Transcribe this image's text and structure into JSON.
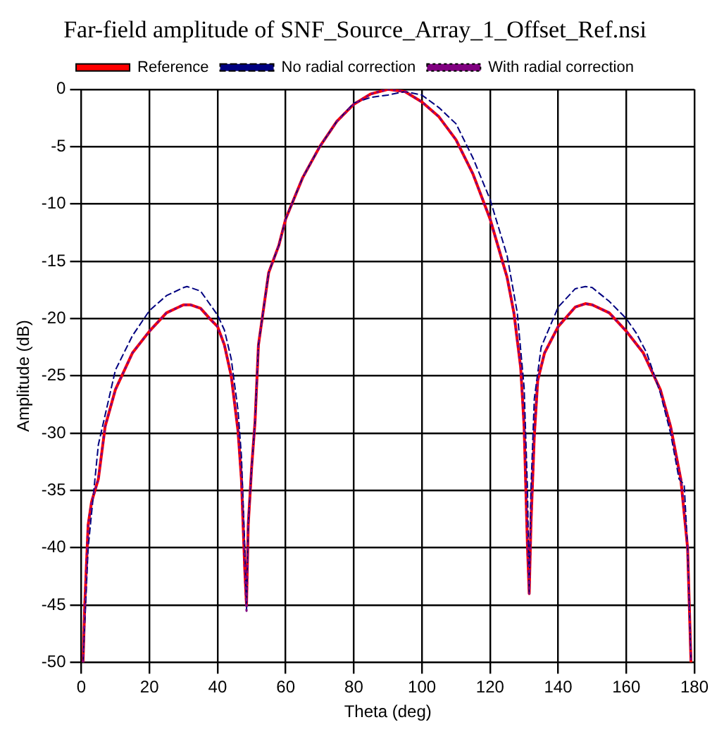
{
  "chart_data": {
    "type": "line",
    "title": "Far-field amplitude of SNF_Source_Array_1_Offset_Ref.nsi",
    "xlabel": "Theta (deg)",
    "ylabel": "Amplitude (dB)",
    "xlim": [
      0,
      180
    ],
    "xticks": [
      0,
      20,
      40,
      60,
      80,
      100,
      120,
      140,
      160,
      180
    ],
    "ylim": [
      -50,
      0
    ],
    "yticks": [
      -50,
      -45,
      -40,
      -35,
      -30,
      -25,
      -20,
      -15,
      -10,
      -5,
      0
    ],
    "grid": true,
    "legend": "top",
    "marker": "none",
    "series": [
      {
        "name": "Reference",
        "color": "#ff0000",
        "line_style": "solid",
        "x": [
          0.5,
          1,
          2,
          3,
          5,
          7,
          10,
          15,
          20,
          25,
          30,
          32,
          35,
          38,
          40,
          42,
          44,
          46,
          47,
          48,
          48.5,
          49,
          50,
          51,
          52,
          55,
          58,
          60,
          65,
          70,
          75,
          80,
          85,
          90,
          95,
          100,
          105,
          110,
          115,
          120,
          125,
          127,
          129,
          130,
          131,
          131.5,
          132,
          133,
          134,
          136,
          140,
          145,
          148,
          150,
          155,
          160,
          165,
          170,
          173,
          176,
          178,
          179
        ],
        "values": [
          -50,
          -45,
          -38,
          -36,
          -34,
          -29.4,
          -26.2,
          -23,
          -21.1,
          -19.5,
          -18.8,
          -18.8,
          -19.1,
          -20.1,
          -20.7,
          -22.3,
          -25,
          -29.8,
          -34,
          -42,
          -45,
          -38,
          -33,
          -29,
          -22.3,
          -16,
          -13.6,
          -11.3,
          -7.7,
          -5,
          -2.8,
          -1.3,
          -0.4,
          0,
          -0.2,
          -1.1,
          -2.4,
          -4.4,
          -7.4,
          -11.3,
          -16.4,
          -19.5,
          -24.3,
          -29.4,
          -40,
          -44,
          -38,
          -30.2,
          -25.4,
          -23,
          -20.7,
          -19,
          -18.7,
          -18.8,
          -19.5,
          -21.1,
          -23,
          -26.2,
          -29.4,
          -34,
          -40,
          -50
        ]
      },
      {
        "name": "No radial correction",
        "color": "#000080",
        "line_style": "dashed",
        "x": [
          0.5,
          2,
          5,
          10,
          15,
          20,
          25,
          30,
          31,
          35,
          40,
          42,
          44,
          46,
          47,
          48,
          48.5,
          49,
          50,
          51,
          52,
          55,
          58,
          60,
          65,
          70,
          75,
          80,
          85,
          90,
          95,
          100,
          105,
          110,
          115,
          120,
          125,
          128,
          130,
          131,
          131.5,
          132,
          133,
          135,
          140,
          145,
          148,
          150,
          155,
          160,
          163,
          166,
          170,
          173,
          175.5,
          177,
          178,
          179
        ],
        "values": [
          -50,
          -40,
          -31,
          -24.5,
          -21.5,
          -19.3,
          -18,
          -17.3,
          -17.2,
          -17.6,
          -19.7,
          -21,
          -23.5,
          -28,
          -32,
          -40,
          -45.5,
          -38,
          -33,
          -29,
          -22.3,
          -16,
          -13.6,
          -11.3,
          -7.7,
          -5,
          -2.8,
          -1.2,
          -0.7,
          -0.5,
          -0.2,
          -0.5,
          -1.6,
          -3,
          -6,
          -9.6,
          -14.5,
          -19.5,
          -26,
          -35,
          -44,
          -35,
          -27,
          -22.5,
          -19,
          -17.4,
          -17.2,
          -17.3,
          -18.5,
          -20,
          -21.3,
          -23,
          -26.5,
          -30,
          -34,
          -34.5,
          -40,
          -50
        ]
      },
      {
        "name": "With radial correction",
        "color": "#800080",
        "line_style": "dotted",
        "x": [
          0.5,
          1,
          2,
          3,
          5,
          7,
          10,
          15,
          20,
          25,
          30,
          32,
          35,
          38,
          40,
          42,
          44,
          46,
          47,
          48,
          48.5,
          49,
          50,
          51,
          52,
          55,
          58,
          60,
          65,
          70,
          75,
          80,
          85,
          90,
          95,
          100,
          105,
          110,
          115,
          120,
          125,
          127,
          129,
          130,
          131,
          131.5,
          132,
          133,
          134,
          136,
          140,
          145,
          148,
          150,
          155,
          160,
          165,
          170,
          173,
          176,
          178,
          179
        ],
        "values": [
          -50,
          -45,
          -38,
          -36,
          -34,
          -29.4,
          -26.2,
          -23,
          -21.1,
          -19.5,
          -18.8,
          -18.8,
          -19.1,
          -20.1,
          -20.7,
          -22.3,
          -25,
          -29.8,
          -34,
          -42,
          -45.5,
          -38,
          -33,
          -29,
          -22.3,
          -16,
          -13.6,
          -11.3,
          -7.7,
          -5,
          -2.8,
          -1.3,
          -0.4,
          0,
          -0.2,
          -1.1,
          -2.4,
          -4.4,
          -7.4,
          -11.3,
          -16.4,
          -19.5,
          -24.3,
          -29.4,
          -40,
          -44,
          -38,
          -30.2,
          -25.4,
          -23,
          -20.7,
          -19,
          -18.7,
          -18.8,
          -19.5,
          -21.1,
          -23,
          -26.2,
          -29.4,
          -34,
          -40,
          -50
        ]
      }
    ]
  }
}
